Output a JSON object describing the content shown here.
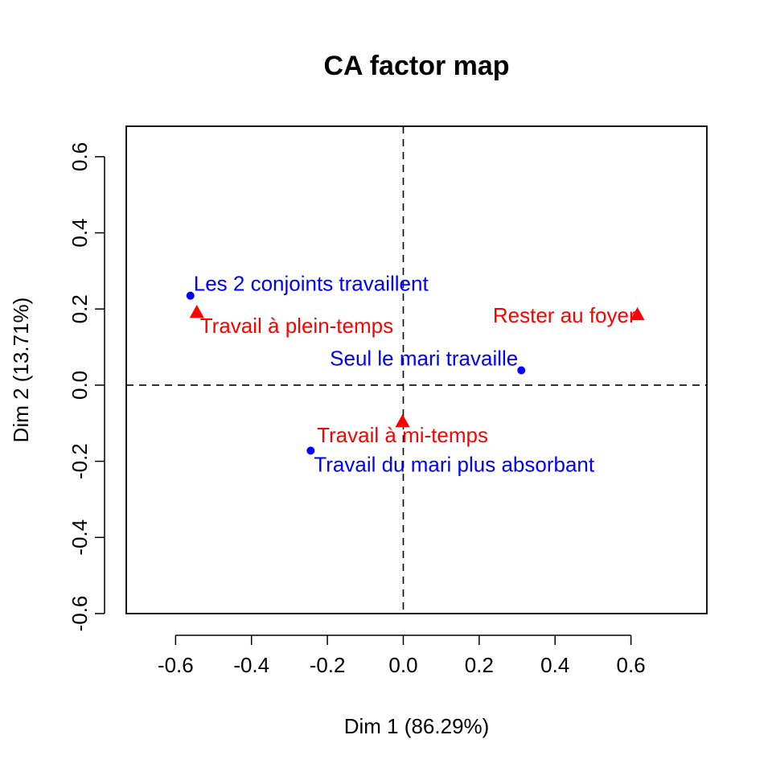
{
  "chart_data": {
    "type": "scatter",
    "title": "CA factor map",
    "xlabel": "Dim 1 (86.29%)",
    "ylabel": "Dim 2 (13.71%)",
    "xlim": [
      -0.73,
      0.8
    ],
    "ylim": [
      -0.6,
      0.68
    ],
    "xticks": [
      -0.6,
      -0.4,
      -0.2,
      0.0,
      0.2,
      0.4,
      0.6
    ],
    "xtick_labels": [
      "-0.6",
      "-0.4",
      "-0.2",
      "0.0",
      "0.2",
      "0.4",
      "0.6"
    ],
    "yticks": [
      -0.6,
      -0.4,
      -0.2,
      0.0,
      0.2,
      0.4,
      0.6
    ],
    "ytick_labels": [
      "-0.6",
      "-0.4",
      "-0.2",
      "0.0",
      "0.2",
      "0.4",
      "0.6"
    ],
    "grid": false,
    "reference_lines": {
      "x": 0,
      "y": 0,
      "style": "dashed"
    },
    "series": [
      {
        "marker": "circle",
        "color": "#0000ff",
        "points": [
          {
            "label": "Les 2 conjoints travaillent",
            "x": -0.561,
            "y": 0.235,
            "label_position": "above-right"
          },
          {
            "label": "Seul le mari travaille",
            "x": 0.311,
            "y": 0.039,
            "label_position": "above-left"
          },
          {
            "label": "Travail du mari plus absorbant",
            "x": -0.244,
            "y": -0.172,
            "label_position": "below-right"
          }
        ]
      },
      {
        "marker": "triangle",
        "color": "#ff0000",
        "points": [
          {
            "label": "Travail à plein-temps",
            "x": -0.544,
            "y": 0.192,
            "label_position": "below-right"
          },
          {
            "label": "Rester au foyer",
            "x": 0.617,
            "y": 0.186,
            "label_position": "left"
          },
          {
            "label": "Travail à mi-temps",
            "x": -0.002,
            "y": -0.095,
            "label_position": "below"
          }
        ]
      }
    ]
  }
}
